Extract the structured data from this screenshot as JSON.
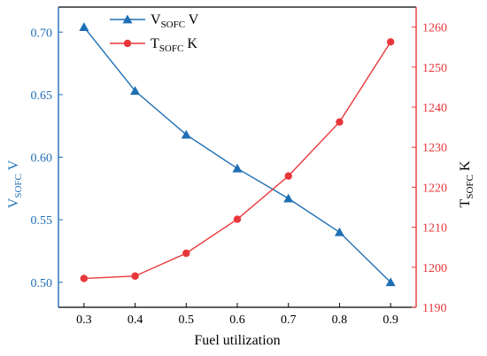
{
  "chart_data": {
    "type": "line",
    "x": [
      0.3,
      0.4,
      0.5,
      0.6,
      0.7,
      0.8,
      0.9
    ],
    "xlabel": "Fuel utilization",
    "xlim": [
      0.25,
      0.95
    ],
    "xticks": [
      "0.3",
      "0.4",
      "0.5",
      "0.6",
      "0.7",
      "0.8",
      "0.9"
    ],
    "y_left": {
      "label_main": "V",
      "label_sub": "SOFC",
      "label_unit": "V",
      "lim": [
        0.48,
        0.72
      ],
      "ticks": [
        "0.50",
        "0.55",
        "0.60",
        "0.65",
        "0.70"
      ],
      "color": "#1f6fb5"
    },
    "y_right": {
      "label_main": "T",
      "label_sub": "SOFC",
      "label_unit": "K",
      "lim": [
        1190,
        1265
      ],
      "ticks": [
        "1190",
        "1200",
        "1210",
        "1220",
        "1230",
        "1240",
        "1250",
        "1260"
      ],
      "color": "#e8373a"
    },
    "series": [
      {
        "axis": "left",
        "marker": "triangle",
        "color": "#1f6fb5",
        "legend_main": "V",
        "legend_sub": "SOFC",
        "legend_unit": "V",
        "values": [
          0.704,
          0.653,
          0.618,
          0.591,
          0.567,
          0.54,
          0.5
        ]
      },
      {
        "axis": "right",
        "marker": "circle",
        "color": "#e8373a",
        "legend_main": "T",
        "legend_sub": "SOFC",
        "legend_unit": "K",
        "values": [
          1197.2,
          1197.8,
          1203.5,
          1212.0,
          1222.8,
          1236.3,
          1256.3
        ]
      }
    ],
    "legend_position": "top-left",
    "grid": false
  }
}
